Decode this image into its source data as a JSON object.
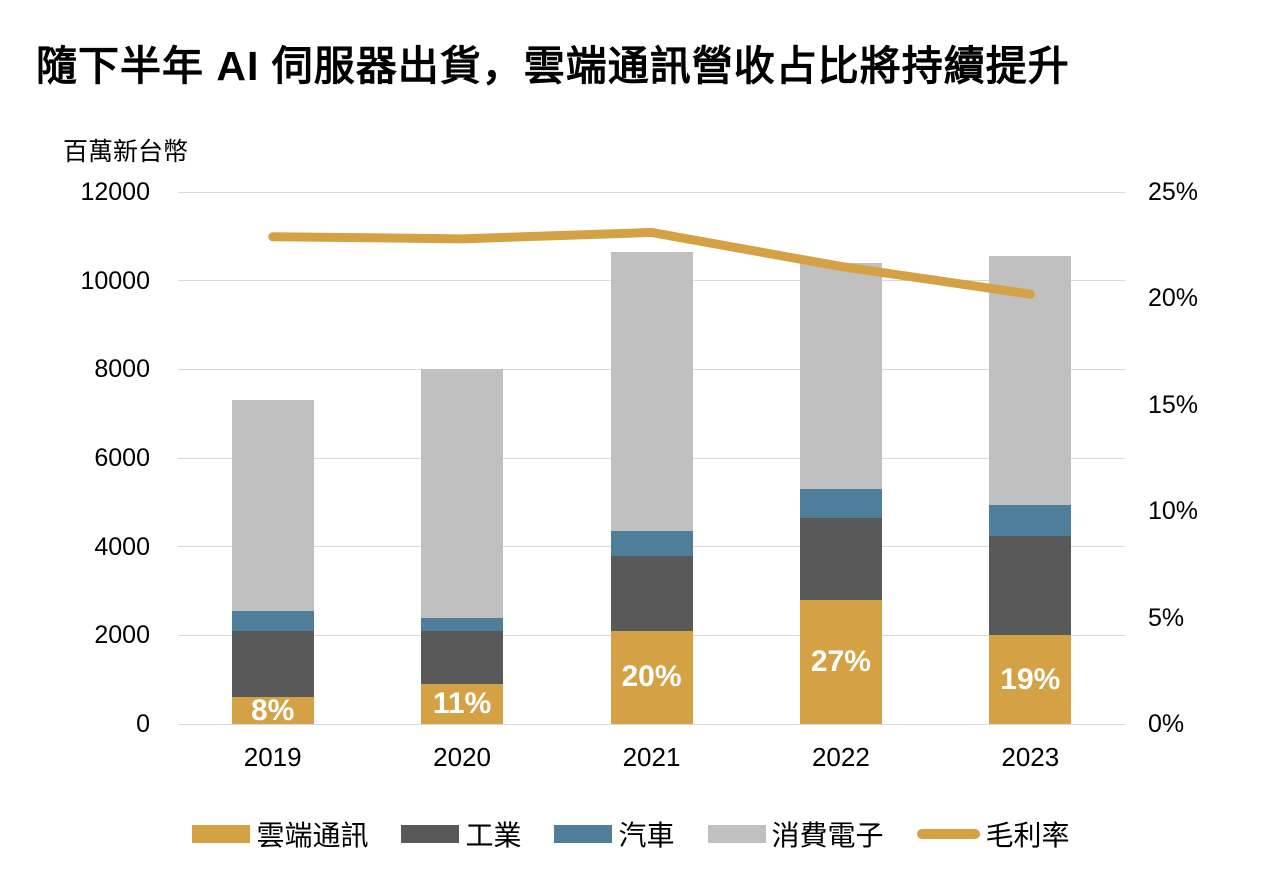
{
  "title": "隨下半年 AI 伺服器出貨，雲端通訊營收占比將持續提升",
  "chart_data": {
    "type": "bar",
    "subtype": "stacked-bars-with-line-overlay",
    "title": "隨下半年 AI 伺服器出貨，雲端通訊營收占比將持續提升",
    "unit_label": "百萬新台幣",
    "categories": [
      "2019",
      "2020",
      "2021",
      "2022",
      "2023"
    ],
    "series": [
      {
        "key": "cloud-communication",
        "name": "雲端通訊",
        "type": "bar",
        "color": "#d5a145",
        "values": [
          600,
          900,
          2100,
          2800,
          2000
        ]
      },
      {
        "key": "industrial",
        "name": "工業",
        "type": "bar",
        "color": "#595959",
        "values": [
          1500,
          1200,
          1700,
          1850,
          2250
        ]
      },
      {
        "key": "automotive",
        "name": "汽車",
        "type": "bar",
        "color": "#4f7e9b",
        "values": [
          450,
          300,
          550,
          650,
          700
        ]
      },
      {
        "key": "consumer-electronics",
        "name": "消費電子",
        "type": "bar",
        "color": "#c0c0c0",
        "values": [
          4750,
          5600,
          6300,
          5100,
          5600
        ]
      },
      {
        "key": "gross-margin",
        "name": "毛利率",
        "type": "line",
        "axis": "right",
        "color": "#d5a145",
        "values": [
          22.9,
          22.8,
          23.1,
          21.5,
          20.2
        ]
      }
    ],
    "bar_totals": [
      7300,
      8000,
      10650,
      10400,
      10550
    ],
    "bar_labels": [
      "8%",
      "11%",
      "20%",
      "27%",
      "19%"
    ],
    "left_axis": {
      "min": 0,
      "max": 12000,
      "step": 2000,
      "ticks": [
        "0",
        "2000",
        "4000",
        "6000",
        "8000",
        "10000",
        "12000"
      ]
    },
    "right_axis": {
      "min": 0,
      "max": 25,
      "step": 5,
      "ticks": [
        "0%",
        "5%",
        "10%",
        "15%",
        "20%",
        "25%"
      ]
    },
    "grid": true,
    "legend_position": "bottom"
  }
}
